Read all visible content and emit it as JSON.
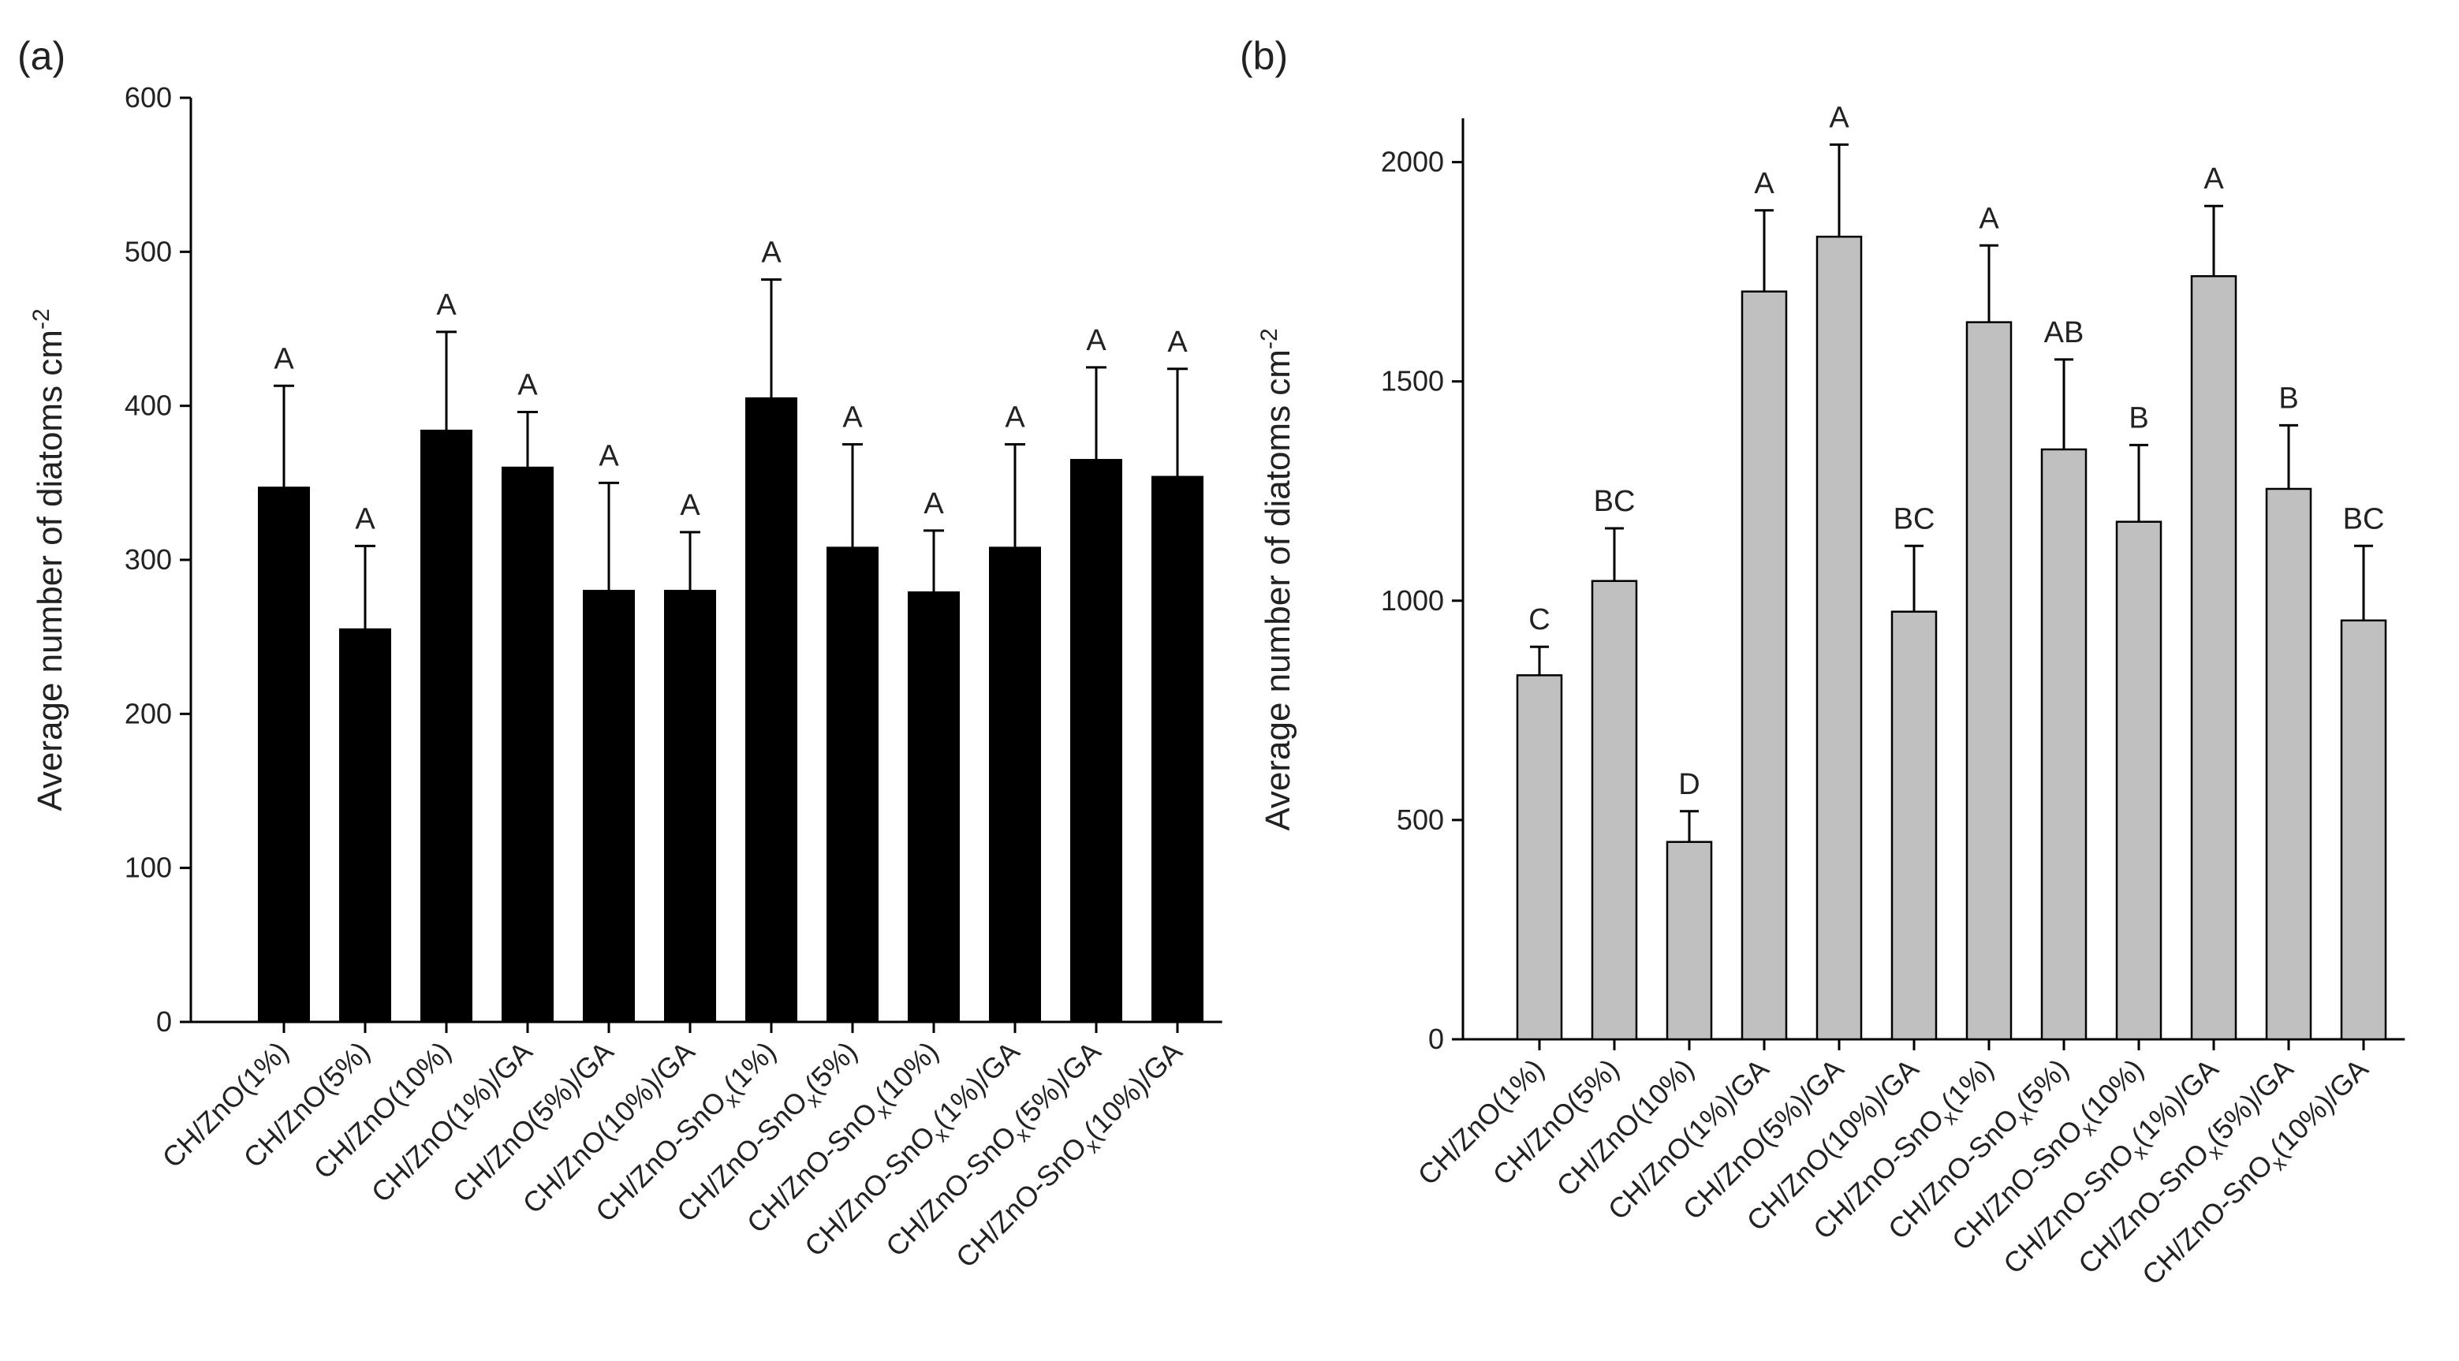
{
  "chart_data": [
    {
      "type": "bar",
      "panel_label": "(a)",
      "ylabel": "Average number of diatoms cm",
      "ylabel_sup": "-2",
      "ylim": [
        0,
        600
      ],
      "yticks": [
        0,
        100,
        200,
        300,
        400,
        500,
        600
      ],
      "bar_color": "#000000",
      "categories": [
        {
          "base": "CH/ZnO(1%)",
          "sub": "",
          "tail": ""
        },
        {
          "base": "CH/ZnO(5%)",
          "sub": "",
          "tail": ""
        },
        {
          "base": "CH/ZnO(10%)",
          "sub": "",
          "tail": ""
        },
        {
          "base": "CH/ZnO(1%)/GA",
          "sub": "",
          "tail": ""
        },
        {
          "base": "CH/ZnO(5%)/GA",
          "sub": "",
          "tail": ""
        },
        {
          "base": "CH/ZnO(10%)/GA",
          "sub": "",
          "tail": ""
        },
        {
          "base": "CH/ZnO-SnO",
          "sub": "x",
          "tail": "(1%)"
        },
        {
          "base": "CH/ZnO-SnO",
          "sub": "x",
          "tail": "(5%)"
        },
        {
          "base": "CH/ZnO-SnO",
          "sub": "x",
          "tail": "(10%)"
        },
        {
          "base": "CH/ZnO-SnO",
          "sub": "x",
          "tail": "(1%)/GA"
        },
        {
          "base": "CH/ZnO-SnO",
          "sub": "x",
          "tail": "(5%)/GA"
        },
        {
          "base": "CH/ZnO-SnO",
          "sub": "x",
          "tail": "(10%)/GA"
        }
      ],
      "values": [
        347,
        255,
        384,
        360,
        280,
        280,
        405,
        308,
        279,
        308,
        365,
        354
      ],
      "errors": [
        66,
        54,
        64,
        36,
        70,
        38,
        77,
        67,
        40,
        67,
        60,
        70
      ],
      "letters": [
        "A",
        "A",
        "A",
        "A",
        "A",
        "A",
        "A",
        "A",
        "A",
        "A",
        "A",
        "A"
      ]
    },
    {
      "type": "bar",
      "panel_label": "(b)",
      "ylabel": "Average number of diatoms cm",
      "ylabel_sup": "-2",
      "ylim": [
        0,
        2100
      ],
      "yticks": [
        0,
        500,
        1000,
        1500,
        2000
      ],
      "bar_color": "#c0c0c0",
      "categories": [
        {
          "base": "CH/ZnO(1%)",
          "sub": "",
          "tail": ""
        },
        {
          "base": "CH/ZnO(5%)",
          "sub": "",
          "tail": ""
        },
        {
          "base": "CH/ZnO(10%)",
          "sub": "",
          "tail": ""
        },
        {
          "base": "CH/ZnO(1%)/GA",
          "sub": "",
          "tail": ""
        },
        {
          "base": "CH/ZnO(5%)/GA",
          "sub": "",
          "tail": ""
        },
        {
          "base": "CH/ZnO(10%)/GA",
          "sub": "",
          "tail": ""
        },
        {
          "base": "CH/ZnO-SnO",
          "sub": "x",
          "tail": "(1%)"
        },
        {
          "base": "CH/ZnO-SnO",
          "sub": "x",
          "tail": "(5%)"
        },
        {
          "base": "CH/ZnO-SnO",
          "sub": "x",
          "tail": "(10%)"
        },
        {
          "base": "CH/ZnO-SnO",
          "sub": "x",
          "tail": "(1%)/GA"
        },
        {
          "base": "CH/ZnO-SnO",
          "sub": "x",
          "tail": "(5%)/GA"
        },
        {
          "base": "CH/ZnO-SnO",
          "sub": "x",
          "tail": "(10%)/GA"
        }
      ],
      "values": [
        830,
        1045,
        450,
        1705,
        1830,
        975,
        1635,
        1345,
        1180,
        1740,
        1255,
        955
      ],
      "errors": [
        65,
        120,
        70,
        185,
        210,
        150,
        175,
        205,
        175,
        160,
        145,
        170
      ],
      "letters": [
        "C",
        "BC",
        "D",
        "A",
        "A",
        "BC",
        "A",
        "AB",
        "B",
        "A",
        "B",
        "BC"
      ]
    }
  ]
}
